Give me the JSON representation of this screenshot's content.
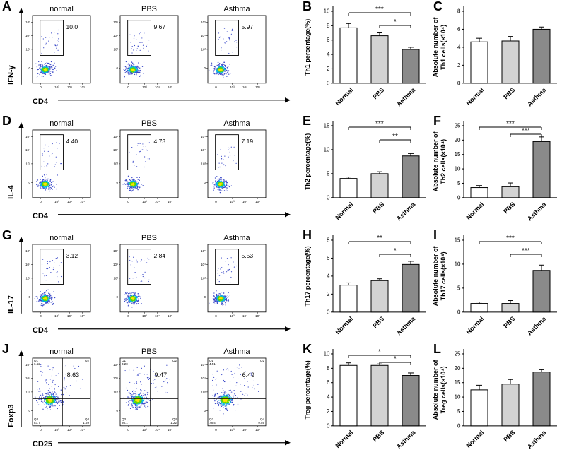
{
  "figure": {
    "background": "#ffffff",
    "bar_fills": [
      "#ffffff",
      "#d3d3d3",
      "#8a8a8a"
    ],
    "flow_point_colors": {
      "core": "#ffe000",
      "inner": "#5fd800",
      "mid": "#00b8e6",
      "outer": "#3a49c8"
    },
    "axis_ticks_log": [
      "0",
      "10³",
      "10⁴",
      "10⁵"
    ],
    "quadrant_labels": [
      "Q1",
      "Q2",
      "Q3",
      "Q4"
    ],
    "rows": [
      {
        "flow": {
          "letter": "A",
          "y_label": "IFN-γ",
          "x_label": "CD4",
          "gate_type": "rect",
          "plots": [
            {
              "title": "normal",
              "gate_value": "10.0"
            },
            {
              "title": "PBS",
              "gate_value": "9.67"
            },
            {
              "title": "Asthma",
              "gate_value": "5.97"
            }
          ]
        }
      },
      {
        "flow": {
          "letter": "D",
          "y_label": "IL-4",
          "x_label": "CD4",
          "gate_type": "rect",
          "plots": [
            {
              "title": "normal",
              "gate_value": "4.40"
            },
            {
              "title": "PBS",
              "gate_value": "4.73"
            },
            {
              "title": "Asthma",
              "gate_value": "7.19"
            }
          ]
        }
      },
      {
        "flow": {
          "letter": "G",
          "y_label": "IL-17",
          "x_label": "CD4",
          "gate_type": "rect",
          "plots": [
            {
              "title": "normal",
              "gate_value": "3.12"
            },
            {
              "title": "PBS",
              "gate_value": "2.84"
            },
            {
              "title": "Asthma",
              "gate_value": "5.53"
            }
          ]
        }
      },
      {
        "flow": {
          "letter": "J",
          "y_label": "Foxp3",
          "x_label": "CD25",
          "gate_type": "quad",
          "plots": [
            {
              "title": "normal",
              "gate_value": "8.63",
              "q1": "6.62",
              "q3": "83.7",
              "q4": "1.69"
            },
            {
              "title": "PBS",
              "gate_value": "9.47",
              "q1": "3.20",
              "q3": "86.1",
              "q4": "1.22"
            },
            {
              "title": "Asthma",
              "gate_value": "6.49",
              "q1": "4.51",
              "q3": "78.4",
              "q4": "9.59"
            }
          ]
        }
      }
    ]
  },
  "chart_data": [
    {
      "panel": "B",
      "type": "bar",
      "categories": [
        "Normal",
        "PBS",
        "Asthma"
      ],
      "values": [
        7.7,
        6.6,
        4.7
      ],
      "errors": [
        0.6,
        0.4,
        0.3
      ],
      "ylabel": "Th1 percentage(%)",
      "ylim": [
        0,
        10
      ],
      "yticks": [
        0,
        2,
        4,
        6,
        8,
        10
      ],
      "significance": [
        {
          "from": 0,
          "to": 2,
          "label": "***"
        },
        {
          "from": 1,
          "to": 2,
          "label": "*"
        }
      ]
    },
    {
      "panel": "C",
      "type": "bar",
      "categories": [
        "Normal",
        "PBS",
        "Asthma"
      ],
      "values": [
        4.6,
        4.7,
        6.0
      ],
      "errors": [
        0.4,
        0.5,
        0.25
      ],
      "ylabel": "Absolute number of\nTh1 cells(×10⁴)",
      "ylim": [
        0,
        8
      ],
      "yticks": [
        0,
        2,
        4,
        6,
        8
      ],
      "significance": []
    },
    {
      "panel": "E",
      "type": "bar",
      "categories": [
        "Normal",
        "PBS",
        "Asthma"
      ],
      "values": [
        4.0,
        5.0,
        8.7
      ],
      "errors": [
        0.3,
        0.4,
        0.5
      ],
      "ylabel": "Th2 percentage(%)",
      "ylim": [
        0,
        15
      ],
      "yticks": [
        0,
        5,
        10,
        15
      ],
      "significance": [
        {
          "from": 0,
          "to": 2,
          "label": "***"
        },
        {
          "from": 1,
          "to": 2,
          "label": "**"
        }
      ]
    },
    {
      "panel": "F",
      "type": "bar",
      "categories": [
        "Normal",
        "PBS",
        "Asthma"
      ],
      "values": [
        3.5,
        3.8,
        19.5
      ],
      "errors": [
        0.7,
        1.3,
        1.6
      ],
      "ylabel": "Absolute number of\nTh2 cells(×10⁴)",
      "ylim": [
        0,
        25
      ],
      "yticks": [
        0,
        5,
        10,
        15,
        20,
        25
      ],
      "significance": [
        {
          "from": 0,
          "to": 2,
          "label": "***"
        },
        {
          "from": 1,
          "to": 2,
          "label": "***"
        }
      ]
    },
    {
      "panel": "H",
      "type": "bar",
      "categories": [
        "Normal",
        "PBS",
        "Asthma"
      ],
      "values": [
        3.0,
        3.5,
        5.3
      ],
      "errors": [
        0.25,
        0.2,
        0.35
      ],
      "ylabel": "Th17 percentage(%)",
      "ylim": [
        0,
        8
      ],
      "yticks": [
        0,
        2,
        4,
        6,
        8
      ],
      "significance": [
        {
          "from": 0,
          "to": 2,
          "label": "**"
        },
        {
          "from": 1,
          "to": 2,
          "label": "*"
        }
      ]
    },
    {
      "panel": "I",
      "type": "bar",
      "categories": [
        "Normal",
        "PBS",
        "Asthma"
      ],
      "values": [
        1.8,
        1.8,
        8.7
      ],
      "errors": [
        0.3,
        0.6,
        1.1
      ],
      "ylabel": "Absolute number of\nTh17 cells(×10⁴)",
      "ylim": [
        0,
        15
      ],
      "yticks": [
        0,
        5,
        10,
        15
      ],
      "significance": [
        {
          "from": 0,
          "to": 2,
          "label": "***"
        },
        {
          "from": 1,
          "to": 2,
          "label": "***"
        }
      ]
    },
    {
      "panel": "K",
      "type": "bar",
      "categories": [
        "Normal",
        "PBS",
        "Asthma"
      ],
      "values": [
        8.4,
        8.4,
        7.0
      ],
      "errors": [
        0.35,
        0.2,
        0.35
      ],
      "ylabel": "Treg percentage(%)",
      "ylim": [
        0,
        10
      ],
      "yticks": [
        0,
        2,
        4,
        6,
        8,
        10
      ],
      "significance": [
        {
          "from": 0,
          "to": 2,
          "label": "*"
        },
        {
          "from": 1,
          "to": 2,
          "label": "*"
        }
      ]
    },
    {
      "panel": "L",
      "type": "bar",
      "categories": [
        "Normal",
        "PBS",
        "Asthma"
      ],
      "values": [
        12.5,
        14.5,
        18.7
      ],
      "errors": [
        1.6,
        1.6,
        0.8
      ],
      "ylabel": "Absolute number of\nTreg cells(×10⁴)",
      "ylim": [
        0,
        25
      ],
      "yticks": [
        0,
        5,
        10,
        15,
        20,
        25
      ],
      "significance": []
    }
  ]
}
